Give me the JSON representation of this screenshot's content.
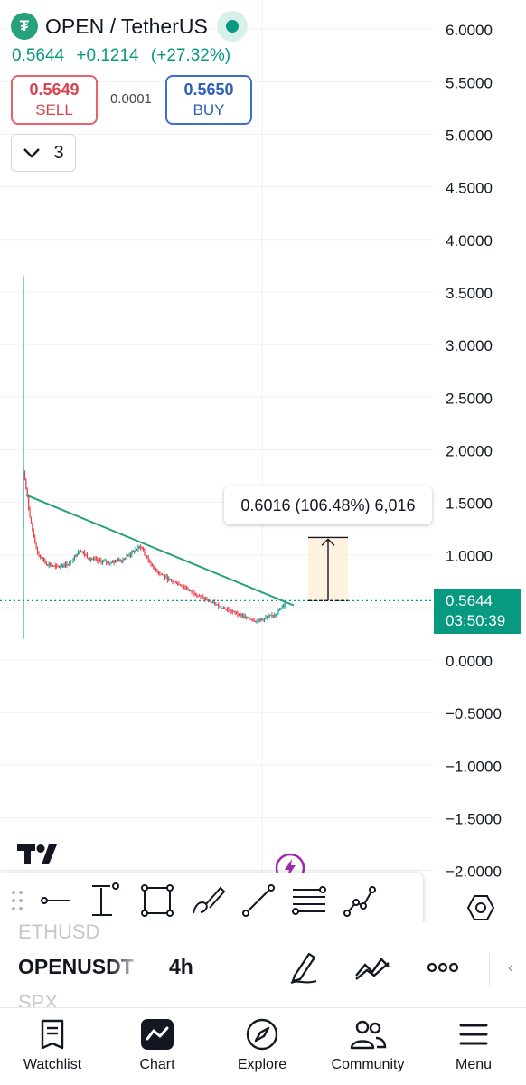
{
  "header": {
    "symbol_title": "OPEN / TetherUS",
    "coin_icon": "tether-icon",
    "last_price": "0.5644",
    "change": "+0.1214",
    "change_percent": "(+27.32%)"
  },
  "trade": {
    "sell_price": "0.5649",
    "sell_label": "SELL",
    "spread": "0.0001",
    "buy_price": "0.5650",
    "buy_label": "BUY"
  },
  "indicators_toggle": {
    "count": "3"
  },
  "measure": {
    "label": "0.6016 (106.48%) 6,016"
  },
  "price_badge": {
    "price": "0.5644",
    "countdown": "03:50:39"
  },
  "colors": {
    "up": "#089981",
    "down": "#f23645",
    "trendline": "#26a17b",
    "measure_fill": "#fdf1e0",
    "accent_bolt": "#9c27b0"
  },
  "chart_data": {
    "type": "candlestick",
    "y_ticks": [
      "6.0000",
      "5.5000",
      "5.0000",
      "4.5000",
      "4.0000",
      "3.5000",
      "3.0000",
      "2.5000",
      "2.0000",
      "1.5000",
      "1.0000",
      "0.5000",
      "0.0000",
      "−0.5000",
      "−1.0000",
      "−1.5000",
      "−2.0000"
    ],
    "y_tick_values": [
      6.0,
      5.5,
      5.0,
      4.5,
      4.0,
      3.5,
      3.0,
      2.5,
      2.0,
      1.5,
      1.0,
      0.5,
      0.0,
      -0.5,
      -1.0,
      -1.5,
      -2.0
    ],
    "ylim": [
      -2.15,
      6.25
    ],
    "grid": true,
    "last_price": 0.5644,
    "close_path": [
      [
        0,
        1.8
      ],
      [
        4,
        1.45
      ],
      [
        8,
        1.15
      ],
      [
        12,
        1.0
      ],
      [
        18,
        0.92
      ],
      [
        26,
        0.88
      ],
      [
        36,
        0.92
      ],
      [
        44,
        1.05
      ],
      [
        50,
        0.98
      ],
      [
        58,
        0.94
      ],
      [
        68,
        0.93
      ],
      [
        78,
        0.96
      ],
      [
        86,
        1.03
      ],
      [
        92,
        1.08
      ],
      [
        98,
        0.95
      ],
      [
        104,
        0.85
      ],
      [
        112,
        0.78
      ],
      [
        122,
        0.72
      ],
      [
        132,
        0.65
      ],
      [
        142,
        0.58
      ],
      [
        152,
        0.52
      ],
      [
        162,
        0.47
      ],
      [
        172,
        0.42
      ],
      [
        182,
        0.37
      ],
      [
        190,
        0.4
      ],
      [
        198,
        0.44
      ],
      [
        203,
        0.5
      ],
      [
        206,
        0.5644
      ]
    ],
    "candle_count": 207,
    "first_candle": {
      "high": 3.65,
      "low": 0.2
    },
    "trendline": {
      "start": {
        "candle": 2,
        "price": 1.57
      },
      "end": {
        "candle": 212,
        "price": 0.52
      }
    },
    "measure": {
      "from_price": 0.5644,
      "to_price": 1.166,
      "delta": "0.6016",
      "percent": "106.48%"
    }
  },
  "toolbar": {
    "tools": [
      "grip-icon",
      "horizontal-line-icon",
      "measure-range-icon",
      "rectangle-icon",
      "brush-icon",
      "trend-line-icon",
      "fib-retracement-icon",
      "path-icon"
    ]
  },
  "symbol_bar": {
    "prev_symbol": "ETHUSD",
    "symbol": "OPENUSDT",
    "next_symbol": "SPX",
    "interval": "4h",
    "more_label": "‹"
  },
  "nav": {
    "items": [
      {
        "label": "Watchlist",
        "icon": "watchlist-icon"
      },
      {
        "label": "Chart",
        "icon": "chart-icon"
      },
      {
        "label": "Explore",
        "icon": "compass-icon"
      },
      {
        "label": "Community",
        "icon": "community-icon"
      },
      {
        "label": "Menu",
        "icon": "hamburger-icon"
      }
    ]
  }
}
